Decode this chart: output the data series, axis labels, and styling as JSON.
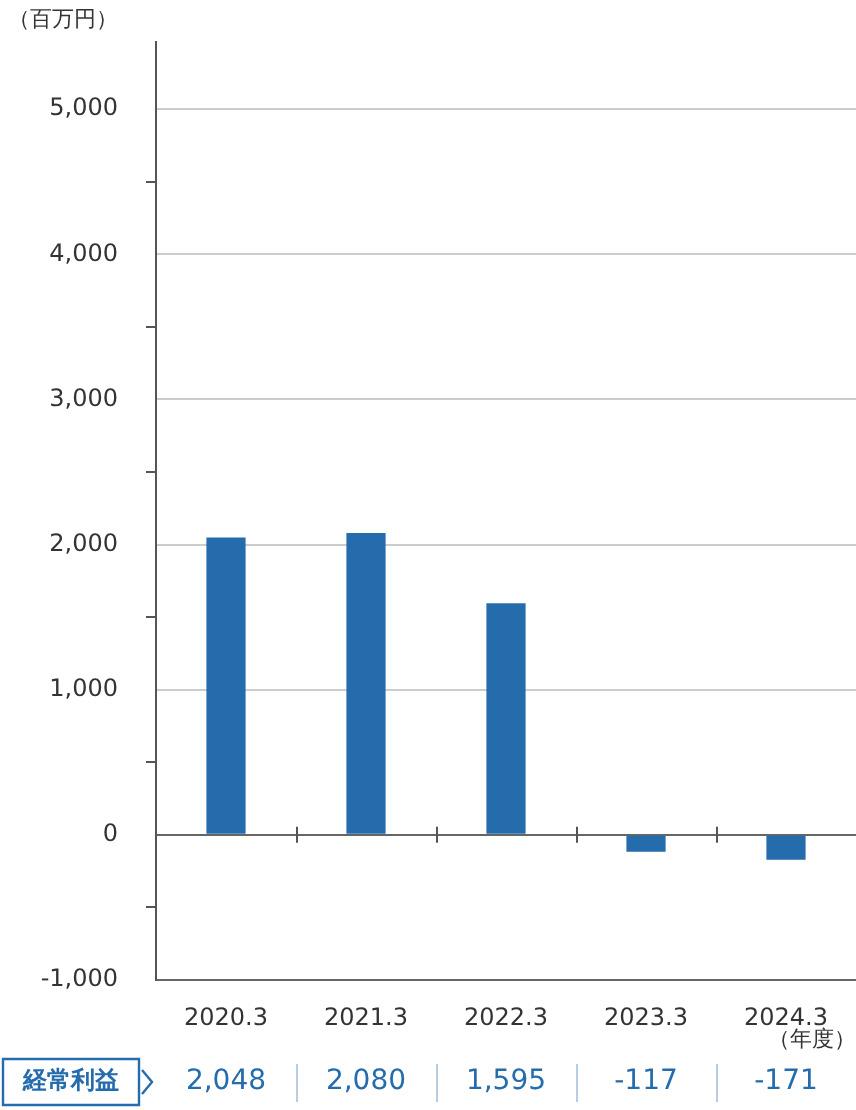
{
  "chart_data": {
    "type": "bar",
    "ylabel": "（百万円）",
    "xlabel": "（年度）",
    "categories": [
      "2020.3",
      "2021.3",
      "2022.3",
      "2023.3",
      "2024.3"
    ],
    "series": [
      {
        "name": "経常利益",
        "color": "#256cad",
        "values": [
          2048,
          2080,
          1595,
          -117,
          -171
        ],
        "value_labels": [
          "2,048",
          "2,080",
          "1,595",
          "-117",
          "-171"
        ]
      }
    ],
    "ylim": [
      -1000,
      5460
    ],
    "yticks": [
      {
        "value": -1000,
        "label": "-1,000"
      },
      {
        "value": -500,
        "label": null
      },
      0,
      {
        "value": 500,
        "label": null
      },
      {
        "value": 1000,
        "label": "1,000"
      },
      {
        "value": 1500,
        "label": null
      },
      {
        "value": 2000,
        "label": "2,000"
      },
      {
        "value": 2500,
        "label": null
      },
      {
        "value": 3000,
        "label": "3,000"
      },
      {
        "value": 3500,
        "label": null
      },
      {
        "value": 4000,
        "label": "4,000"
      },
      {
        "value": 4500,
        "label": null
      },
      {
        "value": 5000,
        "label": "5,000"
      }
    ],
    "grid": "y",
    "legend": "bottom left"
  }
}
